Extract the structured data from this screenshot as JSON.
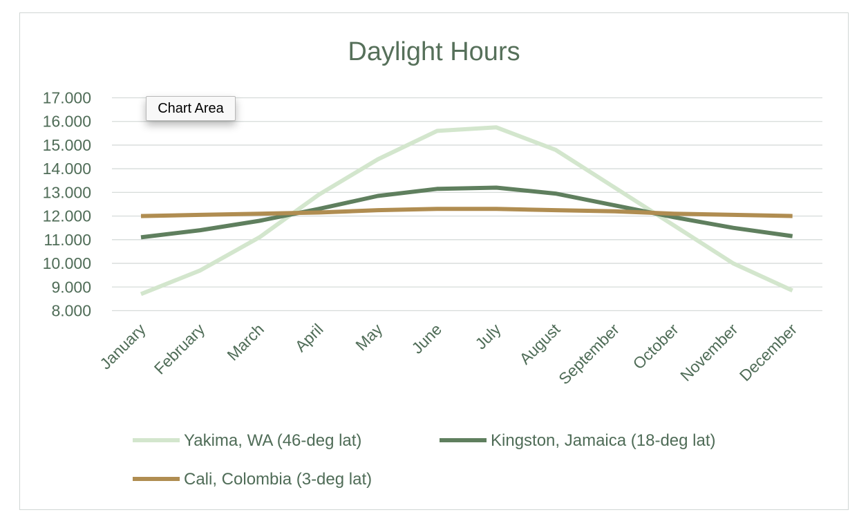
{
  "chart_data": {
    "type": "line",
    "title": "Daylight Hours",
    "xlabel": "",
    "ylabel": "",
    "ylim": [
      8,
      17
    ],
    "y_ticks": [
      "8.000",
      "9.000",
      "10.000",
      "11.000",
      "12.000",
      "13.000",
      "14.000",
      "15.000",
      "16.000",
      "17.000"
    ],
    "categories": [
      "January",
      "February",
      "March",
      "April",
      "May",
      "June",
      "July",
      "August",
      "September",
      "October",
      "November",
      "December"
    ],
    "grid": true,
    "legend_position": "bottom",
    "series": [
      {
        "name": "Yakima, WA (46-deg lat)",
        "color": "#d3e6cd",
        "values": [
          8.7,
          9.7,
          11.1,
          12.9,
          14.4,
          15.6,
          15.75,
          14.8,
          13.2,
          11.6,
          10.0,
          8.85
        ]
      },
      {
        "name": "Kingston, Jamaica (18-deg lat)",
        "color": "#5f7f5e",
        "values": [
          11.1,
          11.4,
          11.8,
          12.3,
          12.85,
          13.15,
          13.2,
          12.95,
          12.45,
          11.95,
          11.5,
          11.15
        ]
      },
      {
        "name": "Cali, Colombia (3-deg lat)",
        "color": "#b08d51",
        "values": [
          12.0,
          12.05,
          12.1,
          12.15,
          12.25,
          12.3,
          12.3,
          12.25,
          12.2,
          12.1,
          12.05,
          12.0
        ]
      }
    ]
  },
  "tooltip": {
    "text": "Chart Area"
  }
}
